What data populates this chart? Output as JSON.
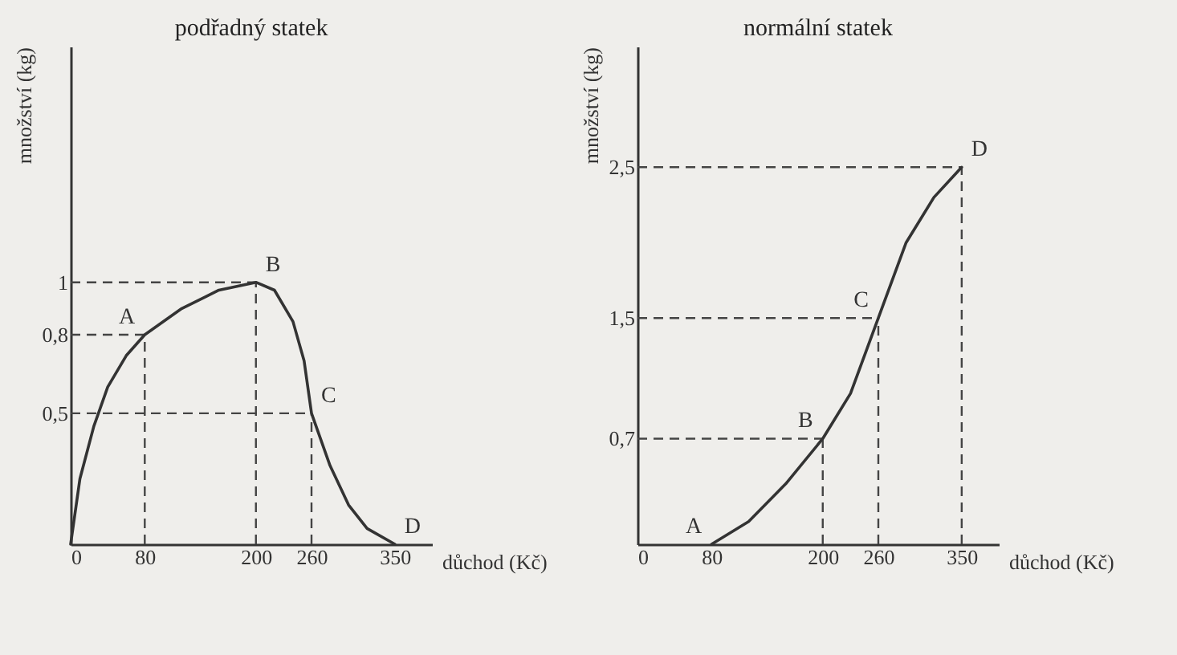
{
  "chart_data": [
    {
      "type": "line",
      "title": "podřadný statek",
      "xlabel": "důchod (Kč)",
      "ylabel": "množství (kg)",
      "x": [
        0,
        10,
        25,
        40,
        60,
        80,
        120,
        160,
        200,
        220,
        240,
        252,
        260,
        280,
        300,
        320,
        350
      ],
      "series": [
        {
          "color": "#333333",
          "values": [
            0,
            0.25,
            0.45,
            0.6,
            0.72,
            0.8,
            0.9,
            0.97,
            1,
            0.97,
            0.85,
            0.7,
            0.5,
            0.3,
            0.15,
            0.06,
            0
          ]
        }
      ],
      "xlim": [
        0,
        390
      ],
      "ylim": [
        0,
        1.9
      ],
      "xticks": [
        0,
        80,
        200,
        260,
        350
      ],
      "yticks": [
        {
          "value": 0.5,
          "label": "0,5"
        },
        {
          "value": 0.8,
          "label": "0,8"
        },
        1
      ],
      "annotations": [
        {
          "text": "A",
          "x": 80,
          "y": 0.8
        },
        {
          "text": "B",
          "x": 200,
          "y": 1
        },
        {
          "text": "C",
          "x": 260,
          "y": 0.5
        },
        {
          "text": "D",
          "x": 350,
          "y": 0
        }
      ]
    },
    {
      "type": "line",
      "title": "normální statek",
      "xlabel": "důchod (Kč)",
      "ylabel": "množství (kg)",
      "x": [
        80,
        120,
        160,
        200,
        230,
        260,
        290,
        320,
        350
      ],
      "series": [
        {
          "color": "#333333",
          "values": [
            0,
            0.15,
            0.4,
            0.7,
            1.0,
            1.5,
            2.0,
            2.3,
            2.5
          ]
        }
      ],
      "xlim": [
        0,
        390
      ],
      "ylim": [
        0,
        3.3
      ],
      "xticks": [
        0,
        80,
        200,
        260,
        350
      ],
      "yticks": [
        {
          "value": 0.7,
          "label": "0,7"
        },
        {
          "value": 1.5,
          "label": "1,5"
        },
        {
          "value": 2.5,
          "label": "2,5"
        }
      ],
      "annotations": [
        {
          "text": "A",
          "x": 80,
          "y": 0
        },
        {
          "text": "B",
          "x": 200,
          "y": 0.7
        },
        {
          "text": "C",
          "x": 260,
          "y": 1.5
        },
        {
          "text": "D",
          "x": 350,
          "y": 2.5
        }
      ]
    }
  ]
}
